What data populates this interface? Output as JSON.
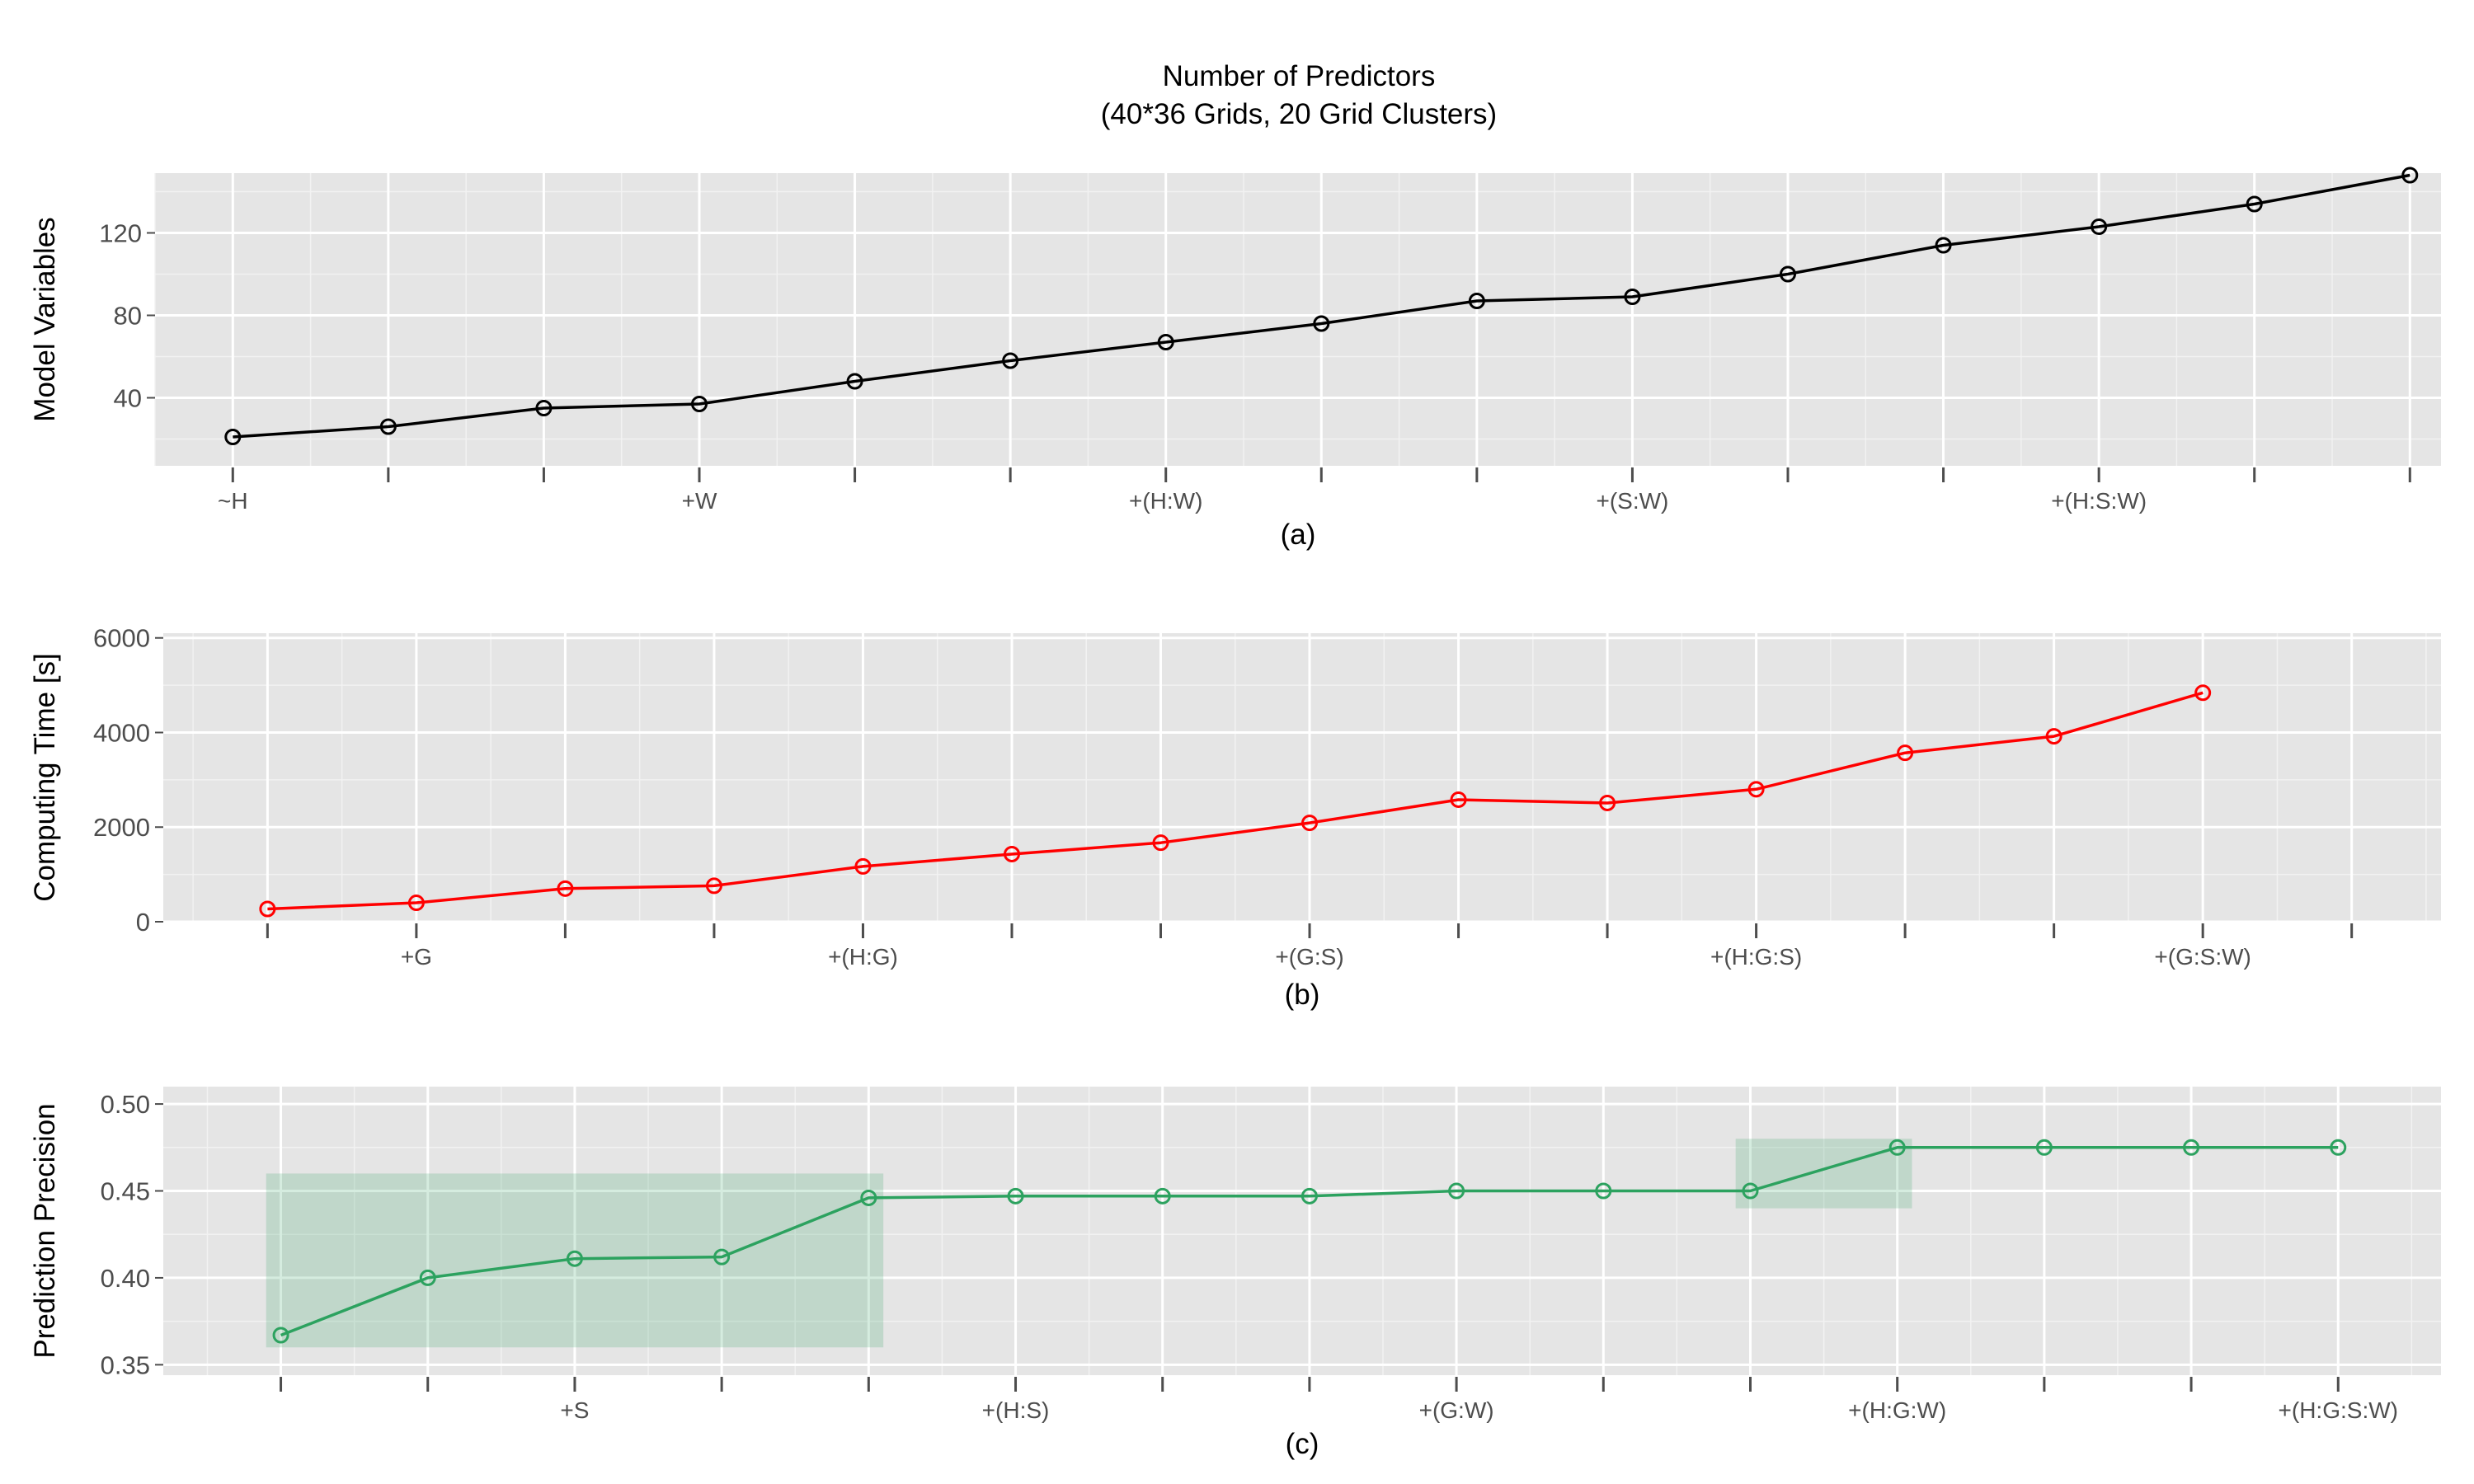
{
  "title_line1": "Number of Predictors",
  "title_line2": "(40*36 Grids, 20 Grid Clusters)",
  "chart_data": [
    {
      "type": "line",
      "panel_label": "(a)",
      "ylabel": "Model Variables",
      "color": "#000000",
      "ylim": [
        7,
        149
      ],
      "yticks": [
        40,
        80,
        120
      ],
      "xlim": [
        0.5,
        15.2
      ],
      "x_tick_positions": [
        1,
        2,
        3,
        4,
        5,
        6,
        7,
        8,
        9,
        10,
        11,
        12,
        13,
        14,
        15
      ],
      "x_tick_labels": [
        {
          "x": 1,
          "label": "~H"
        },
        {
          "x": 4,
          "label": "+W"
        },
        {
          "x": 7,
          "label": "+(H:W)"
        },
        {
          "x": 10,
          "label": "+(S:W)"
        },
        {
          "x": 13,
          "label": "+(H:S:W)"
        }
      ],
      "x": [
        1,
        2,
        3,
        4,
        5,
        6,
        7,
        8,
        9,
        10,
        11,
        12,
        13,
        14,
        15
      ],
      "values": [
        21,
        26,
        35,
        37,
        48,
        58,
        67,
        76,
        87,
        89,
        100,
        114,
        123,
        134,
        148
      ]
    },
    {
      "type": "line",
      "panel_label": "(b)",
      "ylabel": "Computing Time [s]",
      "color": "#ff0000",
      "ylim": [
        0,
        6100
      ],
      "yticks": [
        0,
        2000,
        4000,
        6000
      ],
      "xlim": [
        0.3,
        15.6
      ],
      "x_tick_positions": [
        1,
        2,
        3,
        4,
        5,
        6,
        7,
        8,
        9,
        10,
        11,
        12,
        13,
        14,
        15
      ],
      "x_tick_labels": [
        {
          "x": 2,
          "label": "+G"
        },
        {
          "x": 5,
          "label": "+(H:G)"
        },
        {
          "x": 8,
          "label": "+(G:S)"
        },
        {
          "x": 11,
          "label": "+(H:G:S)"
        },
        {
          "x": 14,
          "label": "+(G:S:W)"
        }
      ],
      "x": [
        1,
        2,
        3,
        4,
        5,
        6,
        7,
        8,
        9,
        10,
        11,
        12,
        13,
        14
      ],
      "values": [
        270,
        400,
        700,
        760,
        1170,
        1430,
        1670,
        2090,
        2580,
        2510,
        2800,
        3570,
        3920,
        4840
      ]
    },
    {
      "type": "line",
      "panel_label": "(c)",
      "ylabel": "Prediction Precision",
      "color": "#2ca25f",
      "ylim": [
        0.344,
        0.51
      ],
      "yticks": [
        "0.35",
        "0.40",
        "0.45",
        "0.50"
      ],
      "xlim": [
        0.2,
        15.7
      ],
      "x_tick_positions": [
        1,
        2,
        3,
        4,
        5,
        6,
        7,
        8,
        9,
        10,
        11,
        12,
        13,
        14,
        15
      ],
      "x_tick_labels": [
        {
          "x": 3,
          "label": "+S"
        },
        {
          "x": 6,
          "label": "+(H:S)"
        },
        {
          "x": 9,
          "label": "+(G:W)"
        },
        {
          "x": 12,
          "label": "+(H:G:W)"
        },
        {
          "x": 15,
          "label": "+(H:G:S:W)"
        }
      ],
      "x": [
        1,
        2,
        3,
        4,
        5,
        6,
        7,
        8,
        9,
        10,
        11,
        12,
        13,
        14,
        15
      ],
      "values": [
        0.367,
        0.4,
        0.411,
        0.412,
        0.446,
        0.447,
        0.447,
        0.447,
        0.45,
        0.45,
        0.45,
        0.475,
        0.475,
        0.475,
        0.475
      ],
      "highlights": [
        {
          "x0": 0.9,
          "x1": 5.1,
          "y0": 0.36,
          "y1": 0.46,
          "color": "#2ca25f"
        },
        {
          "x0": 10.9,
          "x1": 12.1,
          "y0": 0.44,
          "y1": 0.48,
          "color": "#2ca25f"
        }
      ]
    }
  ]
}
